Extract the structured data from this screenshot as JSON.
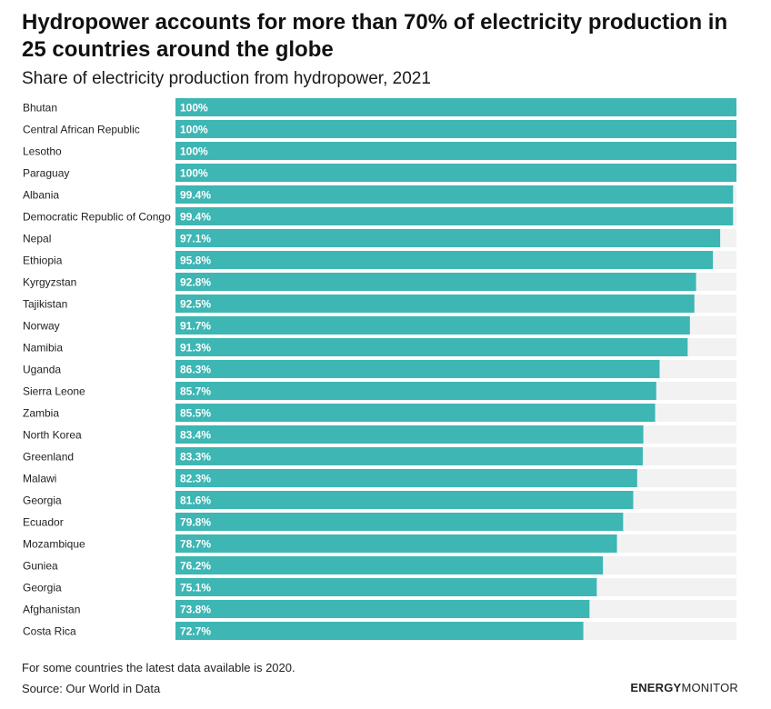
{
  "header": {
    "title": "Hydropower accounts for more than 70% of electricity production in 25 countries around the globe",
    "subtitle": "Share of electricity production from hydropower, 2021"
  },
  "footer": {
    "note": "For some countries the latest data available is 2020.",
    "source": "Source: Our World in Data",
    "brand_bold": "ENERGY",
    "brand_regular": "MONITOR"
  },
  "colors": {
    "bar": "#3db6b4",
    "track": "#f2f2f2",
    "value_text": "#ffffff",
    "label_text": "#222222"
  },
  "chart_data": {
    "type": "bar",
    "orientation": "horizontal",
    "title": "Share of electricity production from hydropower, 2021",
    "xlim": [
      0,
      100
    ],
    "unit": "%",
    "categories": [
      "Bhutan",
      "Central African Republic",
      "Lesotho",
      "Paraguay",
      "Albania",
      "Democratic Republic of Congo",
      "Nepal",
      "Ethiopia",
      "Kyrgyzstan",
      "Tajikistan",
      "Norway",
      "Namibia",
      "Uganda",
      "Sierra Leone",
      "Zambia",
      "North Korea",
      "Greenland",
      "Malawi",
      "Georgia",
      "Ecuador",
      "Mozambique",
      "Guniea",
      "Georgia",
      "Afghanistan",
      "Costa Rica"
    ],
    "values": [
      100,
      100,
      100,
      100,
      99.4,
      99.4,
      97.1,
      95.8,
      92.8,
      92.5,
      91.7,
      91.3,
      86.3,
      85.7,
      85.5,
      83.4,
      83.3,
      82.3,
      81.6,
      79.8,
      78.7,
      76.2,
      75.1,
      73.8,
      72.7
    ],
    "labels": [
      "100%",
      "100%",
      "100%",
      "100%",
      "99.4%",
      "99.4%",
      "97.1%",
      "95.8%",
      "92.8%",
      "92.5%",
      "91.7%",
      "91.3%",
      "86.3%",
      "85.7%",
      "85.5%",
      "83.4%",
      "83.3%",
      "82.3%",
      "81.6%",
      "79.8%",
      "78.7%",
      "76.2%",
      "75.1%",
      "73.8%",
      "72.7%"
    ]
  }
}
